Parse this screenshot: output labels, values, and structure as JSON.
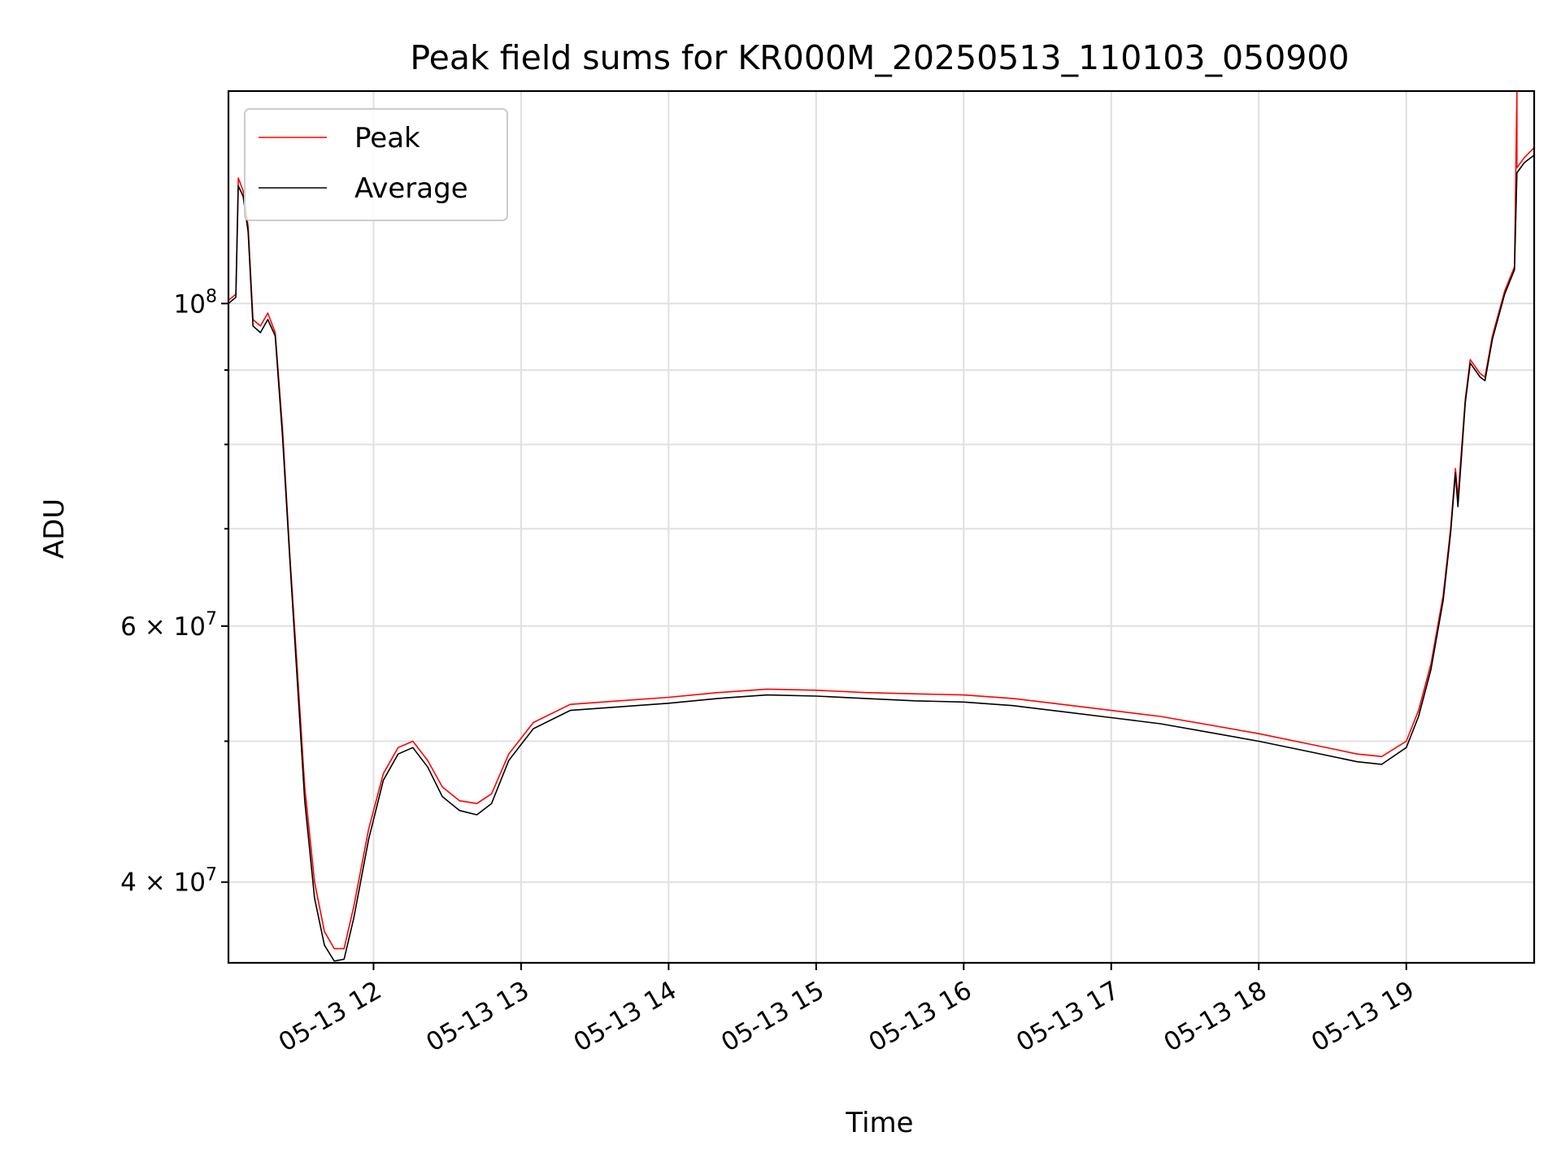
{
  "chart_data": {
    "type": "line",
    "title": "Peak field sums for KR000M_20250513_110103_050900",
    "xlabel": "Time",
    "ylabel": "ADU",
    "yscale": "log",
    "grid": true,
    "legend_position": "top-left",
    "xlim": [
      "2025-05-13 11:01",
      "2025-05-13 19:52"
    ],
    "ylim": [
      35200000,
      140000000
    ],
    "x_ticks": [
      {
        "value": "2025-05-13 12:00",
        "label": "05-13 12"
      },
      {
        "value": "2025-05-13 13:00",
        "label": "05-13 13"
      },
      {
        "value": "2025-05-13 14:00",
        "label": "05-13 14"
      },
      {
        "value": "2025-05-13 15:00",
        "label": "05-13 15"
      },
      {
        "value": "2025-05-13 16:00",
        "label": "05-13 16"
      },
      {
        "value": "2025-05-13 17:00",
        "label": "05-13 17"
      },
      {
        "value": "2025-05-13 18:00",
        "label": "05-13 18"
      },
      {
        "value": "2025-05-13 19:00",
        "label": "05-13 19"
      }
    ],
    "y_major_ticks": [
      {
        "value": 40000000,
        "mantissa": "4",
        "exponent": "7"
      },
      {
        "value": 60000000,
        "mantissa": "6",
        "exponent": "7"
      },
      {
        "value": 100000000,
        "mantissa": "",
        "exponent": "8"
      }
    ],
    "y_minor_ticks": [
      50000000,
      70000000,
      80000000,
      90000000
    ],
    "series": [
      {
        "name": "Peak",
        "color": "#ff0000",
        "points": [
          [
            "2025-05-13 11:01",
            100500000
          ],
          [
            "2025-05-13 11:04",
            101500000
          ],
          [
            "2025-05-13 11:05",
            122000000
          ],
          [
            "2025-05-13 11:07",
            119500000
          ],
          [
            "2025-05-13 11:09",
            113000000
          ],
          [
            "2025-05-13 11:11",
            97500000
          ],
          [
            "2025-05-13 11:14",
            96500000
          ],
          [
            "2025-05-13 11:17",
            98500000
          ],
          [
            "2025-05-13 11:20",
            95500000
          ],
          [
            "2025-05-13 11:23",
            82000000
          ],
          [
            "2025-05-13 11:26",
            67000000
          ],
          [
            "2025-05-13 11:29",
            56000000
          ],
          [
            "2025-05-13 11:32",
            46500000
          ],
          [
            "2025-05-13 11:36",
            40000000
          ],
          [
            "2025-05-13 11:40",
            37000000
          ],
          [
            "2025-05-13 11:44",
            36000000
          ],
          [
            "2025-05-13 11:48",
            36000000
          ],
          [
            "2025-05-13 11:52",
            38500000
          ],
          [
            "2025-05-13 11:58",
            43500000
          ],
          [
            "2025-05-13 12:04",
            47500000
          ],
          [
            "2025-05-13 12:10",
            49500000
          ],
          [
            "2025-05-13 12:16",
            50000000
          ],
          [
            "2025-05-13 12:22",
            48500000
          ],
          [
            "2025-05-13 12:28",
            46500000
          ],
          [
            "2025-05-13 12:35",
            45500000
          ],
          [
            "2025-05-13 12:42",
            45300000
          ],
          [
            "2025-05-13 12:48",
            46000000
          ],
          [
            "2025-05-13 12:55",
            49000000
          ],
          [
            "2025-05-13 13:05",
            51500000
          ],
          [
            "2025-05-13 13:20",
            53000000
          ],
          [
            "2025-05-13 13:40",
            53300000
          ],
          [
            "2025-05-13 14:00",
            53600000
          ],
          [
            "2025-05-13 14:20",
            54000000
          ],
          [
            "2025-05-13 14:40",
            54300000
          ],
          [
            "2025-05-13 15:00",
            54200000
          ],
          [
            "2025-05-13 15:20",
            54000000
          ],
          [
            "2025-05-13 15:40",
            53900000
          ],
          [
            "2025-05-13 16:00",
            53800000
          ],
          [
            "2025-05-13 16:20",
            53500000
          ],
          [
            "2025-05-13 16:40",
            53000000
          ],
          [
            "2025-05-13 17:00",
            52500000
          ],
          [
            "2025-05-13 17:20",
            52000000
          ],
          [
            "2025-05-13 17:40",
            51300000
          ],
          [
            "2025-05-13 18:00",
            50600000
          ],
          [
            "2025-05-13 18:20",
            49800000
          ],
          [
            "2025-05-13 18:40",
            49000000
          ],
          [
            "2025-05-13 18:50",
            48800000
          ],
          [
            "2025-05-13 19:00",
            50000000
          ],
          [
            "2025-05-13 19:05",
            52500000
          ],
          [
            "2025-05-13 19:10",
            56500000
          ],
          [
            "2025-05-13 19:15",
            63000000
          ],
          [
            "2025-05-13 19:18",
            70000000
          ],
          [
            "2025-05-13 19:20",
            77000000
          ],
          [
            "2025-05-13 19:21",
            73500000
          ],
          [
            "2025-05-13 19:24",
            86000000
          ],
          [
            "2025-05-13 19:26",
            91500000
          ],
          [
            "2025-05-13 19:30",
            89500000
          ],
          [
            "2025-05-13 19:32",
            89000000
          ],
          [
            "2025-05-13 19:35",
            95000000
          ],
          [
            "2025-05-13 19:40",
            102000000
          ],
          [
            "2025-05-13 19:44",
            106000000
          ],
          [
            "2025-05-13 19:45",
            140000000
          ],
          [
            "2025-05-13 19:45",
            124000000
          ],
          [
            "2025-05-13 19:48",
            126000000
          ],
          [
            "2025-05-13 19:52",
            128000000
          ]
        ]
      },
      {
        "name": "Average",
        "color": "#000000",
        "points": [
          [
            "2025-05-13 11:01",
            100000000
          ],
          [
            "2025-05-13 11:04",
            101000000
          ],
          [
            "2025-05-13 11:05",
            120500000
          ],
          [
            "2025-05-13 11:07",
            118500000
          ],
          [
            "2025-05-13 11:09",
            112000000
          ],
          [
            "2025-05-13 11:11",
            96500000
          ],
          [
            "2025-05-13 11:14",
            95500000
          ],
          [
            "2025-05-13 11:17",
            97500000
          ],
          [
            "2025-05-13 11:20",
            95000000
          ],
          [
            "2025-05-13 11:23",
            81000000
          ],
          [
            "2025-05-13 11:26",
            66500000
          ],
          [
            "2025-05-13 11:29",
            55000000
          ],
          [
            "2025-05-13 11:32",
            45500000
          ],
          [
            "2025-05-13 11:36",
            39000000
          ],
          [
            "2025-05-13 11:40",
            36200000
          ],
          [
            "2025-05-13 11:44",
            35300000
          ],
          [
            "2025-05-13 11:48",
            35400000
          ],
          [
            "2025-05-13 11:52",
            37800000
          ],
          [
            "2025-05-13 11:58",
            42800000
          ],
          [
            "2025-05-13 12:04",
            47000000
          ],
          [
            "2025-05-13 12:10",
            49000000
          ],
          [
            "2025-05-13 12:16",
            49500000
          ],
          [
            "2025-05-13 12:22",
            48000000
          ],
          [
            "2025-05-13 12:28",
            45800000
          ],
          [
            "2025-05-13 12:35",
            44800000
          ],
          [
            "2025-05-13 12:42",
            44500000
          ],
          [
            "2025-05-13 12:48",
            45300000
          ],
          [
            "2025-05-13 12:55",
            48500000
          ],
          [
            "2025-05-13 13:05",
            51000000
          ],
          [
            "2025-05-13 13:20",
            52500000
          ],
          [
            "2025-05-13 13:40",
            52800000
          ],
          [
            "2025-05-13 14:00",
            53100000
          ],
          [
            "2025-05-13 14:20",
            53500000
          ],
          [
            "2025-05-13 14:40",
            53800000
          ],
          [
            "2025-05-13 15:00",
            53700000
          ],
          [
            "2025-05-13 15:20",
            53500000
          ],
          [
            "2025-05-13 15:40",
            53300000
          ],
          [
            "2025-05-13 16:00",
            53200000
          ],
          [
            "2025-05-13 16:20",
            52900000
          ],
          [
            "2025-05-13 16:40",
            52400000
          ],
          [
            "2025-05-13 17:00",
            51900000
          ],
          [
            "2025-05-13 17:20",
            51400000
          ],
          [
            "2025-05-13 17:40",
            50700000
          ],
          [
            "2025-05-13 18:00",
            50000000
          ],
          [
            "2025-05-13 18:20",
            49200000
          ],
          [
            "2025-05-13 18:40",
            48400000
          ],
          [
            "2025-05-13 18:50",
            48200000
          ],
          [
            "2025-05-13 19:00",
            49500000
          ],
          [
            "2025-05-13 19:05",
            52000000
          ],
          [
            "2025-05-13 19:10",
            56000000
          ],
          [
            "2025-05-13 19:15",
            62500000
          ],
          [
            "2025-05-13 19:18",
            69500000
          ],
          [
            "2025-05-13 19:20",
            76500000
          ],
          [
            "2025-05-13 19:21",
            72500000
          ],
          [
            "2025-05-13 19:24",
            85500000
          ],
          [
            "2025-05-13 19:26",
            91000000
          ],
          [
            "2025-05-13 19:30",
            89000000
          ],
          [
            "2025-05-13 19:32",
            88500000
          ],
          [
            "2025-05-13 19:35",
            94500000
          ],
          [
            "2025-05-13 19:40",
            101500000
          ],
          [
            "2025-05-13 19:44",
            105500000
          ],
          [
            "2025-05-13 19:45",
            123000000
          ],
          [
            "2025-05-13 19:48",
            125000000
          ],
          [
            "2025-05-13 19:52",
            126500000
          ]
        ]
      }
    ]
  }
}
